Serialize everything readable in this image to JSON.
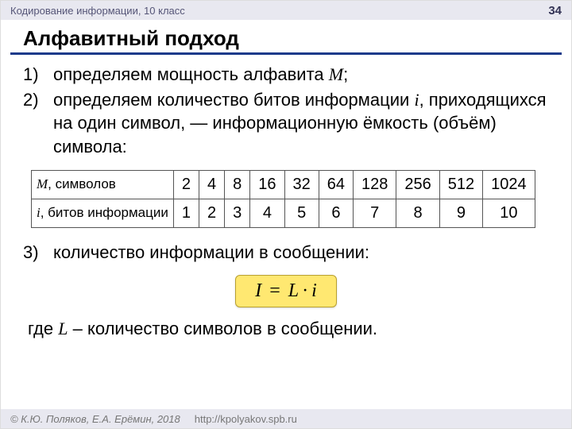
{
  "header": {
    "course": "Кодирование информации, 10 класс",
    "page": "34"
  },
  "title": "Алфавитный подход",
  "steps": {
    "s1_pre": "определяем мощность алфавита ",
    "s1_var": "M",
    "s1_post": ";",
    "s2_pre": "определяем количество битов информации ",
    "s2_var": "i",
    "s2_post": ", приходящихся на один символ, — информационную ёмкость (объём) символа:",
    "s3": "количество информации в сообщении:"
  },
  "table": {
    "row1_label_var": "M",
    "row1_label_rest": ", символов",
    "row2_label_var": "i",
    "row2_label_rest": ", битов информации",
    "M": [
      "2",
      "4",
      "8",
      "16",
      "32",
      "64",
      "128",
      "256",
      "512",
      "1024"
    ],
    "i": [
      "1",
      "2",
      "3",
      "4",
      "5",
      "6",
      "7",
      "8",
      "9",
      "10"
    ]
  },
  "formula": {
    "I": "I",
    "eq": "=",
    "L": "L",
    "dot": "·",
    "ivar": "i"
  },
  "where": {
    "pre": "где ",
    "var": "L",
    "post": " – количество символов в сообщении."
  },
  "footer": {
    "copyright": "© К.Ю. Поляков, Е.А. Ерёмин, 2018",
    "url": "http://kpolyakov.spb.ru"
  },
  "colors": {
    "underline": "#1a3a8a",
    "formula_bg": "#ffe871"
  }
}
